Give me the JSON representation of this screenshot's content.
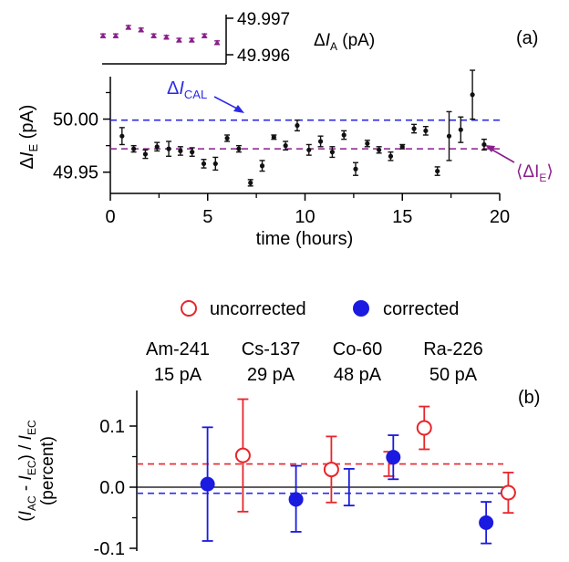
{
  "chart_data": [
    {
      "panel": "(a)",
      "type": "scatter",
      "xlabel": "time (hours)",
      "ylabel": "ΔI_E (pA)",
      "xlim": [
        0,
        20
      ],
      "ylim": [
        49.93,
        50.04
      ],
      "xticks": [
        "0",
        "5",
        "10",
        "15",
        "20"
      ],
      "yticks": [
        "49.95",
        "50.00"
      ],
      "reference_lines": [
        {
          "name": "ΔI_CAL",
          "value": 49.999,
          "color": "#2a2ae8"
        },
        {
          "name": "⟨ΔI_E⟩",
          "value": 49.972,
          "color": "#8a1f8a"
        }
      ],
      "series": [
        {
          "color": "#111111",
          "points": [
            {
              "x": 0.6,
              "y": 49.984,
              "e": 0.008
            },
            {
              "x": 1.2,
              "y": 49.972,
              "e": 0.003
            },
            {
              "x": 1.8,
              "y": 49.967,
              "e": 0.004
            },
            {
              "x": 2.4,
              "y": 49.974,
              "e": 0.004
            },
            {
              "x": 3.0,
              "y": 49.972,
              "e": 0.007
            },
            {
              "x": 3.6,
              "y": 49.97,
              "e": 0.004
            },
            {
              "x": 4.2,
              "y": 49.969,
              "e": 0.004
            },
            {
              "x": 4.8,
              "y": 49.958,
              "e": 0.004
            },
            {
              "x": 5.4,
              "y": 49.958,
              "e": 0.006
            },
            {
              "x": 6.0,
              "y": 49.982,
              "e": 0.003
            },
            {
              "x": 6.6,
              "y": 49.972,
              "e": 0.003
            },
            {
              "x": 7.2,
              "y": 49.94,
              "e": 0.003
            },
            {
              "x": 7.8,
              "y": 49.956,
              "e": 0.005
            },
            {
              "x": 8.4,
              "y": 49.983,
              "e": 0.002
            },
            {
              "x": 9.0,
              "y": 49.975,
              "e": 0.004
            },
            {
              "x": 9.6,
              "y": 49.994,
              "e": 0.005
            },
            {
              "x": 10.2,
              "y": 49.971,
              "e": 0.005
            },
            {
              "x": 10.8,
              "y": 49.979,
              "e": 0.005
            },
            {
              "x": 11.4,
              "y": 49.969,
              "e": 0.005
            },
            {
              "x": 12.0,
              "y": 49.985,
              "e": 0.004
            },
            {
              "x": 12.6,
              "y": 49.953,
              "e": 0.006
            },
            {
              "x": 13.2,
              "y": 49.977,
              "e": 0.003
            },
            {
              "x": 13.8,
              "y": 49.971,
              "e": 0.003
            },
            {
              "x": 14.4,
              "y": 49.965,
              "e": 0.004
            },
            {
              "x": 15.0,
              "y": 49.974,
              "e": 0.002
            },
            {
              "x": 15.6,
              "y": 49.991,
              "e": 0.004
            },
            {
              "x": 16.2,
              "y": 49.989,
              "e": 0.004
            },
            {
              "x": 16.8,
              "y": 49.951,
              "e": 0.004
            },
            {
              "x": 17.4,
              "y": 49.984,
              "e": 0.023
            },
            {
              "x": 18.0,
              "y": 49.99,
              "e": 0.012
            },
            {
              "x": 18.6,
              "y": 50.023,
              "e": 0.023
            },
            {
              "x": 19.2,
              "y": 49.976,
              "e": 0.005
            }
          ]
        }
      ]
    },
    {
      "panel": "(a) inset",
      "type": "scatter",
      "ylabel": "ΔI_A (pA)",
      "ylim": [
        49.9958,
        49.9973
      ],
      "yticks": [
        "49.997",
        "49.996"
      ],
      "series": [
        {
          "color": "#8a1f8a",
          "points": [
            {
              "x": 1,
              "y": 49.99652,
              "e": 5e-05
            },
            {
              "x": 2,
              "y": 49.99652,
              "e": 5e-05
            },
            {
              "x": 3,
              "y": 49.99675,
              "e": 5e-05
            },
            {
              "x": 4,
              "y": 49.99668,
              "e": 5e-05
            },
            {
              "x": 5,
              "y": 49.99652,
              "e": 5e-05
            },
            {
              "x": 6,
              "y": 49.99648,
              "e": 5e-05
            },
            {
              "x": 7,
              "y": 49.9964,
              "e": 5e-05
            },
            {
              "x": 8,
              "y": 49.9964,
              "e": 5e-05
            },
            {
              "x": 9,
              "y": 49.99652,
              "e": 5e-05
            },
            {
              "x": 10,
              "y": 49.99633,
              "e": 5e-05
            }
          ]
        }
      ]
    },
    {
      "panel": "(b)",
      "type": "scatter",
      "ylabel_lines": [
        "(I_AC - I_EC) / I_EC",
        "(percent)"
      ],
      "ylim": [
        -0.1,
        0.15
      ],
      "yticks": [
        "0.1",
        "0.0",
        "-0.1"
      ],
      "legend": [
        "uncorrected",
        "corrected"
      ],
      "categories": [
        {
          "name": "Am-241",
          "current": "15 pA"
        },
        {
          "name": "Cs-137",
          "current": "29 pA"
        },
        {
          "name": "Co-60",
          "current": "48 pA"
        },
        {
          "name": "Ra-226",
          "current": "50 pA"
        }
      ],
      "reference_lines": [
        {
          "series": "uncorrected",
          "value": 0.038,
          "color": "#e8252a"
        },
        {
          "series": "corrected",
          "value": -0.01,
          "color": "#2a2ae8"
        }
      ],
      "series": [
        {
          "name": "uncorrected",
          "color": "#e8252a",
          "marker": "open-circle",
          "points": [
            {
              "pos": 1.2,
              "y": 0.052,
              "err_low": 0.092,
              "err_high": 0.092,
              "marker": true
            },
            {
              "pos": 2.2,
              "y": 0.029,
              "err_low": 0.054,
              "err_high": 0.054,
              "marker": true
            },
            {
              "pos": 2.85,
              "y": 0.038,
              "err_low": 0.02,
              "err_high": 0.02,
              "marker": false
            },
            {
              "pos": 3.25,
              "y": 0.097,
              "err_low": 0.035,
              "err_high": 0.035,
              "marker": true
            },
            {
              "pos": 4.2,
              "y": -0.009,
              "err_low": 0.033,
              "err_high": 0.033,
              "marker": true
            }
          ]
        },
        {
          "name": "corrected",
          "color": "#1a1ae0",
          "marker": "filled-circle",
          "points": [
            {
              "pos": 0.8,
              "y": 0.005,
              "err_low": 0.093,
              "err_high": 0.093,
              "marker": true
            },
            {
              "pos": 1.8,
              "y": -0.02,
              "err_low": 0.053,
              "err_high": 0.055,
              "marker": true
            },
            {
              "pos": 2.4,
              "y": 0.0,
              "err_low": 0.03,
              "err_high": 0.03,
              "marker": false
            },
            {
              "pos": 2.9,
              "y": 0.049,
              "err_low": 0.036,
              "err_high": 0.036,
              "marker": true
            },
            {
              "pos": 3.95,
              "y": -0.058,
              "err_low": 0.034,
              "err_high": 0.034,
              "marker": true
            }
          ]
        }
      ]
    }
  ]
}
